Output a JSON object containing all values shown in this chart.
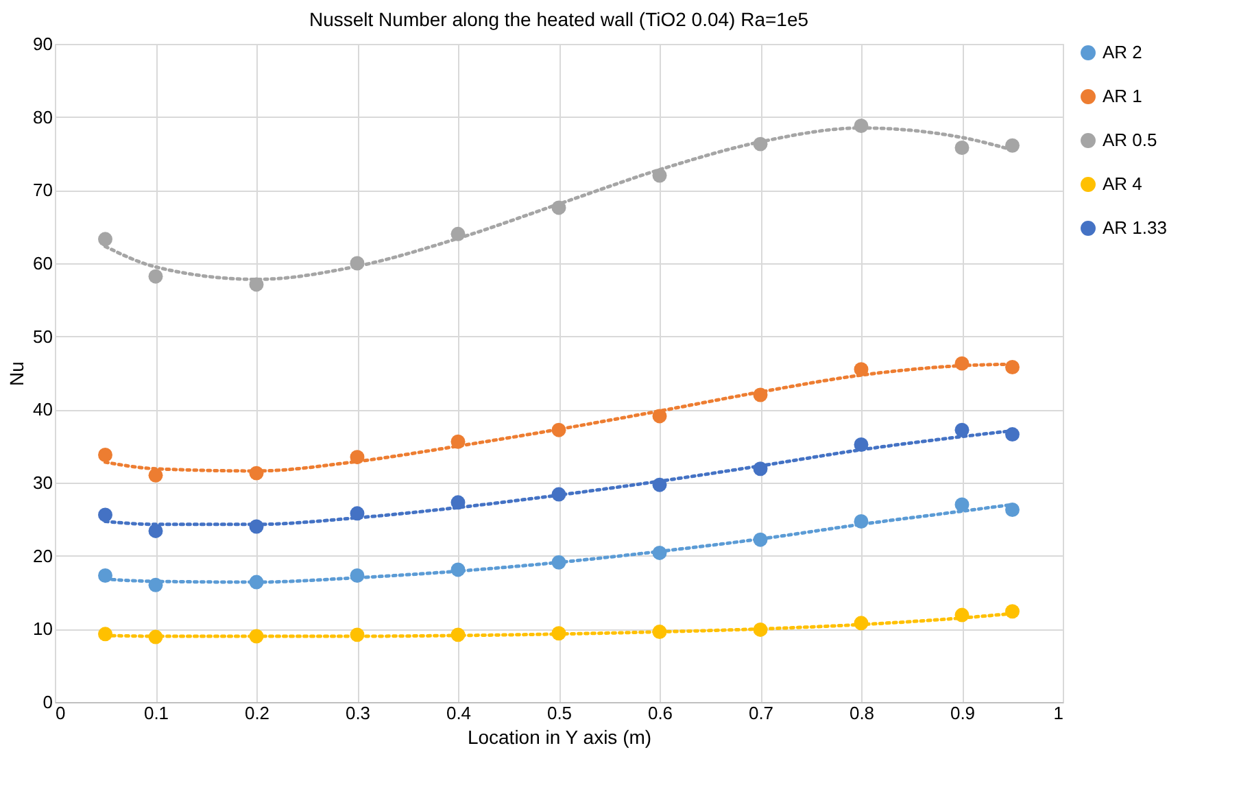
{
  "chart_data": {
    "type": "scatter",
    "title": "Nusselt Number along the heated wall (TiO2 0.04) Ra=1e5",
    "xlabel": "Location in Y axis (m)",
    "ylabel": "Nu",
    "x": [
      0.05,
      0.1,
      0.2,
      0.3,
      0.4,
      0.5,
      0.6,
      0.7,
      0.8,
      0.9,
      0.95
    ],
    "series": [
      {
        "name": "AR 2",
        "color": "#5b9bd5",
        "marker": "circle",
        "values": [
          17.3,
          16.0,
          16.4,
          17.3,
          18.1,
          19.1,
          20.4,
          22.2,
          24.7,
          27.0,
          26.3
        ]
      },
      {
        "name": "AR 1",
        "color": "#ed7d31",
        "marker": "circle",
        "values": [
          33.8,
          31.0,
          31.3,
          33.5,
          35.6,
          37.2,
          39.1,
          42.0,
          45.5,
          46.3,
          45.8
        ]
      },
      {
        "name": "AR 0.5",
        "color": "#a5a5a5",
        "marker": "circle",
        "values": [
          63.3,
          58.2,
          57.1,
          60.0,
          64.0,
          67.6,
          72.0,
          76.3,
          78.8,
          75.8,
          76.1
        ]
      },
      {
        "name": "AR 4",
        "color": "#ffc000",
        "marker": "circle",
        "values": [
          9.3,
          8.9,
          9.0,
          9.2,
          9.2,
          9.4,
          9.6,
          9.9,
          10.8,
          11.9,
          12.4
        ]
      },
      {
        "name": "AR 1.33",
        "color": "#4472c4",
        "marker": "circle",
        "values": [
          25.6,
          23.4,
          24.0,
          25.8,
          27.3,
          28.4,
          29.7,
          31.9,
          35.2,
          37.2,
          36.6
        ]
      },
      {
        "type": "line",
        "line_style": "dotted",
        "marker": "none",
        "color": "#5b9bd5",
        "values": [
          16.8,
          16.5,
          16.4,
          17.0,
          17.9,
          19.1,
          20.6,
          22.3,
          24.3,
          26.1,
          27.0
        ]
      },
      {
        "type": "line",
        "line_style": "dotted",
        "marker": "none",
        "color": "#ed7d31",
        "values": [
          32.8,
          31.9,
          31.6,
          32.9,
          35.0,
          37.3,
          39.8,
          42.4,
          44.7,
          46.0,
          46.2
        ]
      },
      {
        "type": "line",
        "line_style": "dotted",
        "marker": "none",
        "color": "#a5a5a5",
        "values": [
          62.3,
          59.5,
          57.8,
          59.6,
          63.4,
          68.1,
          72.8,
          76.6,
          78.5,
          77.2,
          75.5
        ]
      },
      {
        "type": "line",
        "line_style": "dotted",
        "marker": "none",
        "color": "#ffc000",
        "values": [
          9.1,
          9.0,
          9.0,
          9.0,
          9.1,
          9.3,
          9.6,
          10.0,
          10.6,
          11.5,
          12.1
        ]
      },
      {
        "type": "line",
        "line_style": "dotted",
        "marker": "none",
        "color": "#4472c4",
        "values": [
          24.7,
          24.3,
          24.3,
          25.2,
          26.6,
          28.3,
          30.2,
          32.3,
          34.5,
          36.3,
          37.1
        ]
      }
    ],
    "xlim": [
      0,
      1
    ],
    "xticks": [
      0,
      0.1,
      0.2,
      0.3,
      0.4,
      0.5,
      0.6,
      0.7,
      0.8,
      0.9,
      1
    ],
    "ylim": [
      0,
      90
    ],
    "yticks": [
      0,
      10,
      20,
      30,
      40,
      50,
      60,
      70,
      80,
      90
    ],
    "grid": true,
    "legend": "right"
  }
}
